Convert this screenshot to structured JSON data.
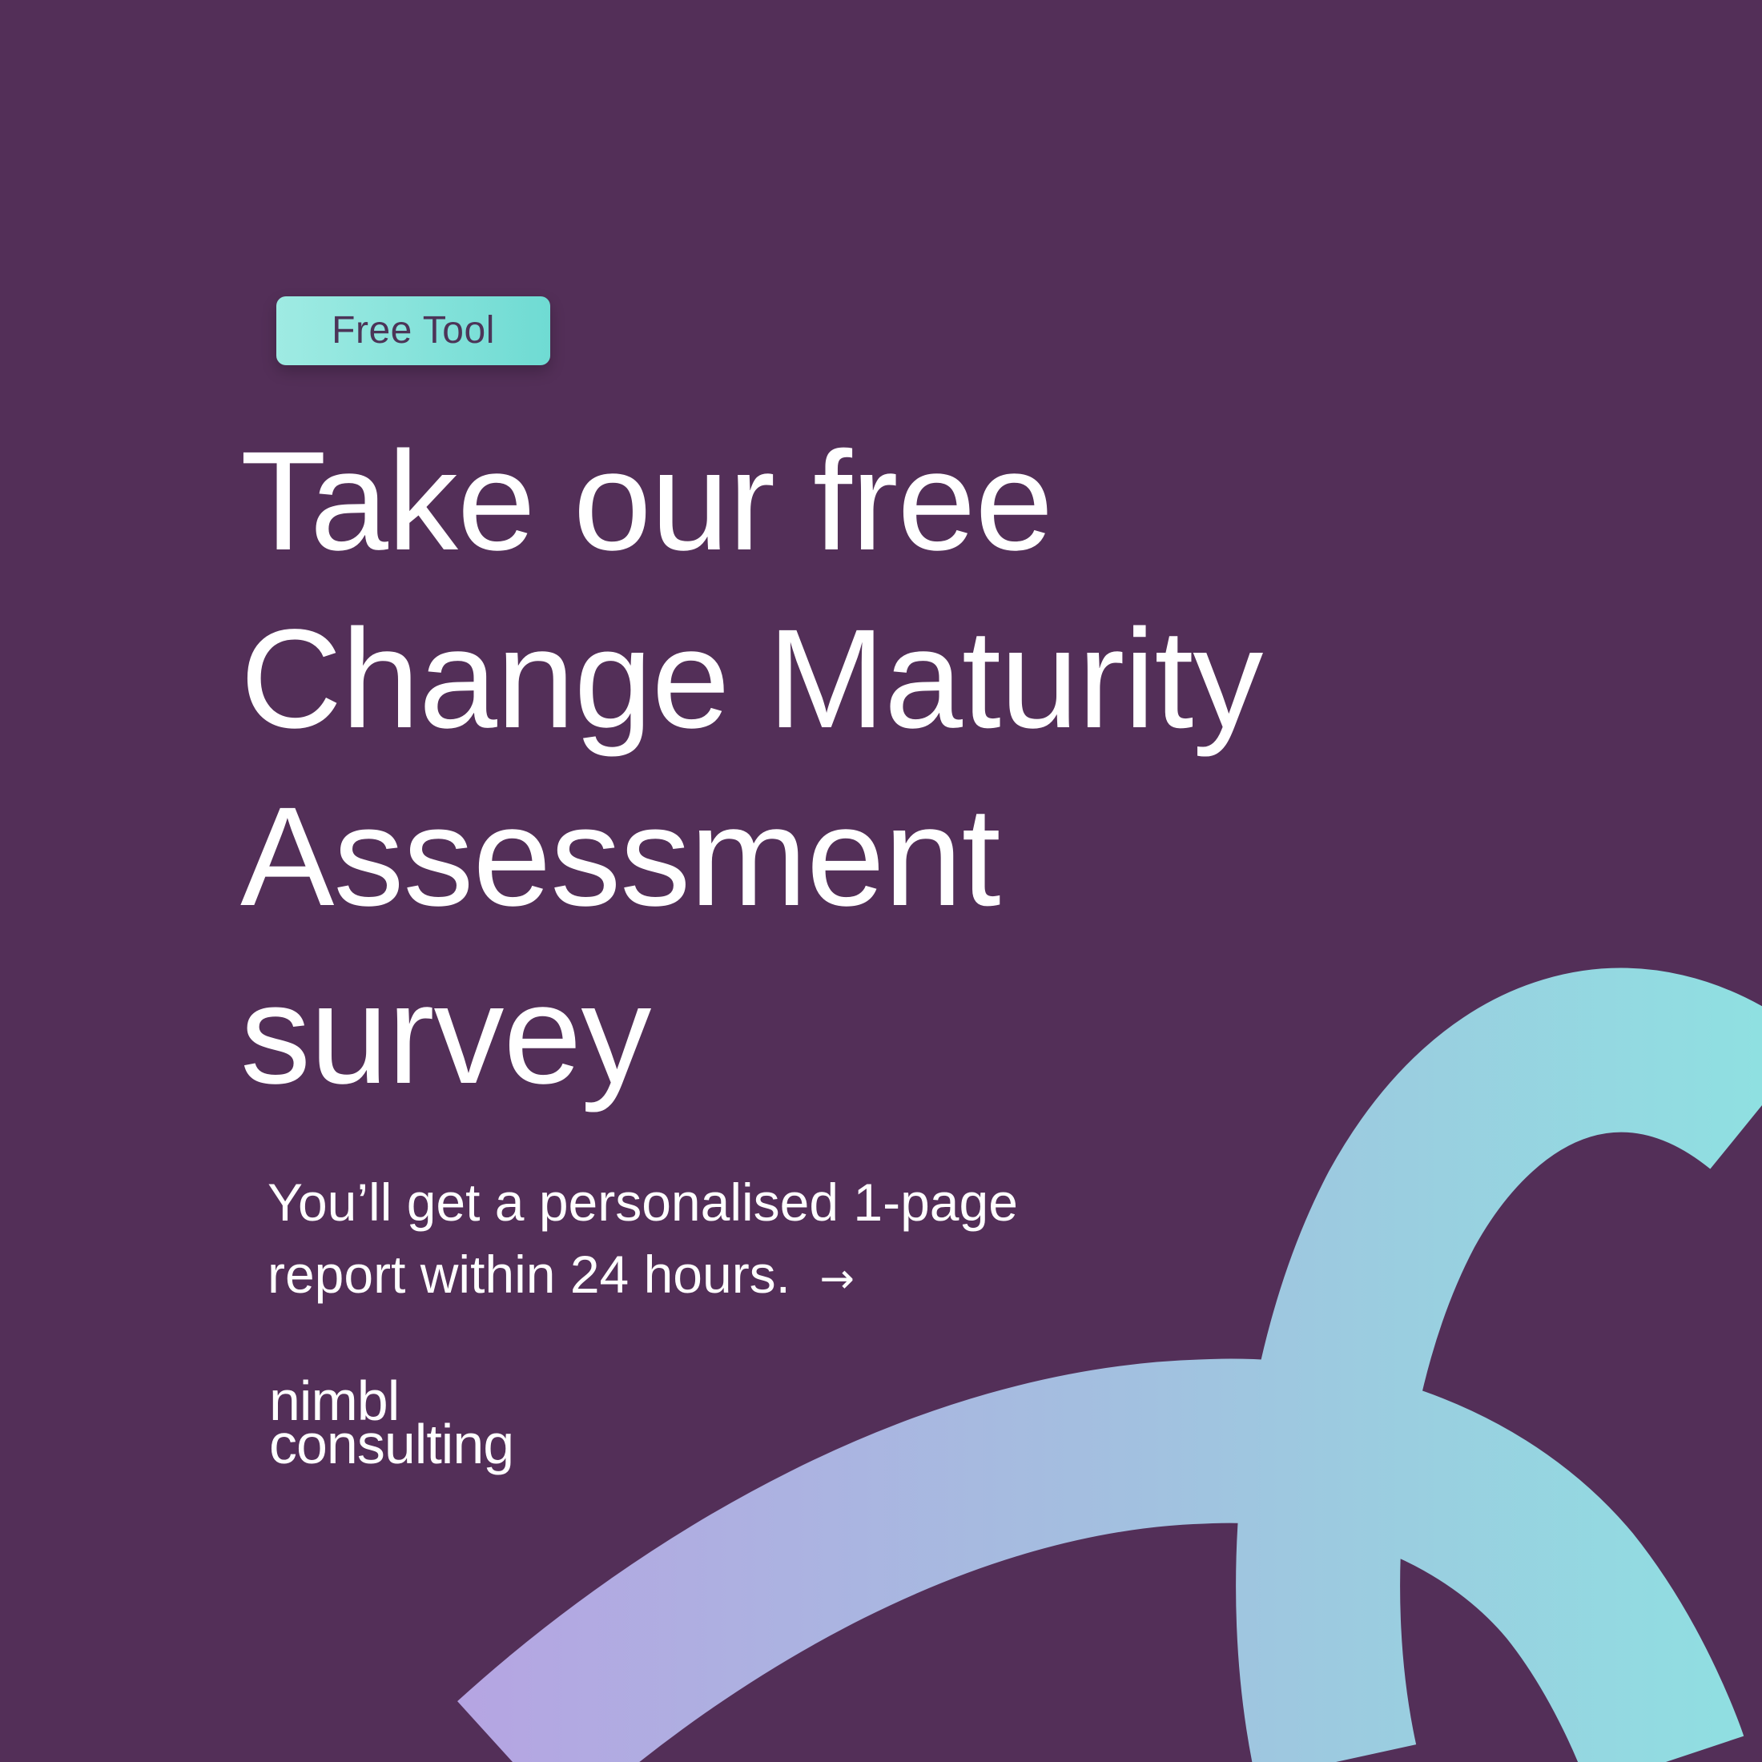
{
  "badge": {
    "label": "Free Tool"
  },
  "headline": {
    "lines": [
      "Take our free",
      "Change Maturity",
      "Assessment",
      "survey"
    ]
  },
  "subtext": {
    "lines": [
      "You’ll get a personalised 1-page",
      "report within 24 hours."
    ],
    "arrow": "→"
  },
  "logo": {
    "lines": [
      "nimbl",
      "consulting"
    ]
  },
  "colors": {
    "background": "#532F58",
    "badge_start": "#9FEBE3",
    "badge_end": "#6FDBD3",
    "text": "#FFFFFF",
    "badge_text": "#4C3458",
    "swoosh_start": "#B7A2E2",
    "swoosh_end": "#8FE0E1"
  },
  "icons": {
    "arrow": "right-arrow-icon",
    "decoration": "gradient-swoosh"
  }
}
